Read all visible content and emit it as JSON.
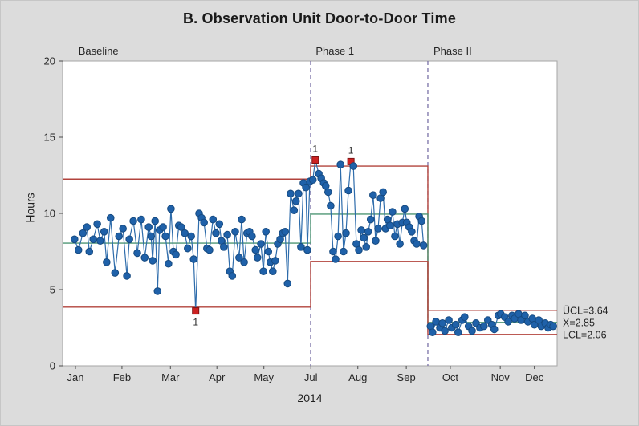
{
  "chart_data": {
    "type": "line",
    "subtype": "individuals-control-chart",
    "title": "B. Observation Unit Door-to-Door Time",
    "ylabel": "Hours",
    "xlabel": "2014",
    "ylim": [
      0,
      20
    ],
    "yticks": [
      0,
      5,
      10,
      15,
      20
    ],
    "grid": false,
    "legend_position": "none",
    "xticks": [
      {
        "label": "Jan",
        "f": 0.026
      },
      {
        "label": "Feb",
        "f": 0.12
      },
      {
        "label": "Mar",
        "f": 0.218
      },
      {
        "label": "Apr",
        "f": 0.312
      },
      {
        "label": "May",
        "f": 0.407
      },
      {
        "label": "Jul",
        "f": 0.502
      },
      {
        "label": "Aug",
        "f": 0.597
      },
      {
        "label": "Sep",
        "f": 0.695
      },
      {
        "label": "Oct",
        "f": 0.784
      },
      {
        "label": "Nov",
        "f": 0.885
      },
      {
        "label": "Dec",
        "f": 0.954
      }
    ],
    "flag_label": "1",
    "phases": [
      {
        "name": "Baseline",
        "label_f": 0.032,
        "f0": 0.0,
        "f1": 0.5016,
        "ucl": 12.25,
        "cl": 8.05,
        "lcl": 3.85,
        "points": [
          [
            0.024,
            8.3
          ],
          [
            0.032,
            7.6
          ],
          [
            0.041,
            8.7
          ],
          [
            0.049,
            9.1
          ],
          [
            0.054,
            7.5
          ],
          [
            0.062,
            8.3
          ],
          [
            0.07,
            9.3
          ],
          [
            0.076,
            8.2
          ],
          [
            0.084,
            8.8
          ],
          [
            0.089,
            6.8
          ],
          [
            0.097,
            9.7
          ],
          [
            0.106,
            6.1
          ],
          [
            0.114,
            8.5
          ],
          [
            0.122,
            9.0
          ],
          [
            0.13,
            5.9
          ],
          [
            0.135,
            8.3
          ],
          [
            0.143,
            9.5
          ],
          [
            0.151,
            7.4
          ],
          [
            0.159,
            9.6
          ],
          [
            0.166,
            7.1
          ],
          [
            0.174,
            9.1
          ],
          [
            0.179,
            8.5
          ],
          [
            0.182,
            6.9
          ],
          [
            0.187,
            9.5
          ],
          [
            0.192,
            4.9
          ],
          [
            0.196,
            8.9
          ],
          [
            0.203,
            9.1
          ],
          [
            0.208,
            8.5
          ],
          [
            0.214,
            6.7
          ],
          [
            0.219,
            10.3
          ],
          [
            0.224,
            7.5
          ],
          [
            0.229,
            7.3
          ],
          [
            0.235,
            9.2
          ],
          [
            0.24,
            9.1
          ],
          [
            0.247,
            8.7
          ],
          [
            0.253,
            7.7
          ],
          [
            0.26,
            8.5
          ],
          [
            0.265,
            7.0
          ],
          [
            0.269,
            3.6,
            1
          ],
          [
            0.276,
            10.0
          ],
          [
            0.281,
            9.7
          ],
          [
            0.286,
            9.4
          ],
          [
            0.292,
            7.7
          ],
          [
            0.297,
            7.6
          ],
          [
            0.304,
            9.6
          ],
          [
            0.31,
            8.7
          ],
          [
            0.317,
            9.3
          ],
          [
            0.321,
            8.2
          ],
          [
            0.326,
            7.8
          ],
          [
            0.333,
            8.6
          ],
          [
            0.338,
            6.2
          ],
          [
            0.343,
            5.9
          ],
          [
            0.349,
            8.8
          ],
          [
            0.357,
            7.1
          ],
          [
            0.362,
            9.6
          ],
          [
            0.367,
            6.8
          ],
          [
            0.373,
            8.7
          ],
          [
            0.378,
            8.8
          ],
          [
            0.383,
            8.5
          ],
          [
            0.39,
            7.6
          ],
          [
            0.394,
            7.1
          ],
          [
            0.401,
            8.0
          ],
          [
            0.406,
            6.2
          ],
          [
            0.411,
            8.8
          ],
          [
            0.416,
            7.5
          ],
          [
            0.42,
            6.8
          ],
          [
            0.425,
            6.2
          ],
          [
            0.43,
            6.9
          ],
          [
            0.435,
            8.0
          ],
          [
            0.44,
            8.3
          ],
          [
            0.445,
            8.7
          ],
          [
            0.45,
            8.8
          ],
          [
            0.455,
            5.4
          ],
          [
            0.461,
            11.3
          ],
          [
            0.468,
            10.2
          ],
          [
            0.472,
            10.8
          ],
          [
            0.477,
            11.3
          ],
          [
            0.482,
            7.8
          ],
          [
            0.487,
            12.0
          ],
          [
            0.492,
            11.7
          ],
          [
            0.495,
            7.6
          ],
          [
            0.5,
            12.1
          ]
        ]
      },
      {
        "name": "Phase 1",
        "label_f": 0.512,
        "f0": 0.5016,
        "f1": 0.7386,
        "ucl": 13.1,
        "cl": 9.95,
        "lcl": 6.85,
        "points": [
          [
            0.506,
            12.2
          ],
          [
            0.511,
            13.5,
            1
          ],
          [
            0.518,
            12.6
          ],
          [
            0.523,
            12.3
          ],
          [
            0.528,
            12.0
          ],
          [
            0.532,
            11.8
          ],
          [
            0.537,
            11.4
          ],
          [
            0.542,
            10.5
          ],
          [
            0.547,
            7.5
          ],
          [
            0.552,
            7.0
          ],
          [
            0.557,
            8.5
          ],
          [
            0.562,
            13.2
          ],
          [
            0.568,
            7.5
          ],
          [
            0.573,
            8.7
          ],
          [
            0.578,
            11.5
          ],
          [
            0.583,
            13.4,
            1
          ],
          [
            0.588,
            13.1
          ],
          [
            0.594,
            8.0
          ],
          [
            0.599,
            7.6
          ],
          [
            0.604,
            8.9
          ],
          [
            0.609,
            8.4
          ],
          [
            0.614,
            7.8
          ],
          [
            0.618,
            8.8
          ],
          [
            0.623,
            9.6
          ],
          [
            0.628,
            11.2
          ],
          [
            0.633,
            8.2
          ],
          [
            0.638,
            9.0
          ],
          [
            0.643,
            11.0
          ],
          [
            0.648,
            11.4
          ],
          [
            0.653,
            9.0
          ],
          [
            0.657,
            9.6
          ],
          [
            0.662,
            9.2
          ],
          [
            0.667,
            10.1
          ],
          [
            0.672,
            8.5
          ],
          [
            0.677,
            9.3
          ],
          [
            0.682,
            8.0
          ],
          [
            0.687,
            9.4
          ],
          [
            0.692,
            10.3
          ],
          [
            0.696,
            9.4
          ],
          [
            0.701,
            9.1
          ],
          [
            0.706,
            8.8
          ],
          [
            0.711,
            8.2
          ],
          [
            0.716,
            8.0
          ],
          [
            0.721,
            9.8
          ],
          [
            0.726,
            9.5
          ],
          [
            0.73,
            7.9
          ]
        ]
      },
      {
        "name": "Phase II",
        "label_f": 0.75,
        "f0": 0.7386,
        "f1": 1.0,
        "ucl": 3.64,
        "cl": 2.85,
        "lcl": 2.06,
        "points": [
          [
            0.744,
            2.6
          ],
          [
            0.748,
            2.2
          ],
          [
            0.755,
            2.9
          ],
          [
            0.763,
            2.5
          ],
          [
            0.768,
            2.8
          ],
          [
            0.773,
            2.3
          ],
          [
            0.781,
            3.0
          ],
          [
            0.787,
            2.5
          ],
          [
            0.795,
            2.7
          ],
          [
            0.8,
            2.2
          ],
          [
            0.808,
            3.0
          ],
          [
            0.813,
            3.2
          ],
          [
            0.821,
            2.6
          ],
          [
            0.828,
            2.3
          ],
          [
            0.836,
            2.8
          ],
          [
            0.844,
            2.5
          ],
          [
            0.852,
            2.6
          ],
          [
            0.86,
            3.0
          ],
          [
            0.868,
            2.7
          ],
          [
            0.873,
            2.4
          ],
          [
            0.881,
            3.3
          ],
          [
            0.886,
            3.4
          ],
          [
            0.894,
            3.2
          ],
          [
            0.901,
            2.9
          ],
          [
            0.909,
            3.3
          ],
          [
            0.914,
            3.1
          ],
          [
            0.922,
            3.4
          ],
          [
            0.927,
            3.0
          ],
          [
            0.935,
            3.3
          ],
          [
            0.941,
            2.9
          ],
          [
            0.95,
            3.1
          ],
          [
            0.954,
            2.7
          ],
          [
            0.963,
            3.0
          ],
          [
            0.968,
            2.6
          ],
          [
            0.976,
            2.8
          ],
          [
            0.982,
            2.5
          ],
          [
            0.987,
            2.7
          ],
          [
            0.992,
            2.6
          ]
        ]
      }
    ],
    "right_labels": [
      {
        "text": "ŪCL=3.64",
        "v": 3.64
      },
      {
        "text": "X=2.85",
        "v": 2.85
      },
      {
        "text": "LCL=2.06",
        "v": 2.06
      }
    ],
    "colors": {
      "point_fill": "#1f61a9",
      "point_stroke": "#164a80",
      "series_line": "#2e6cab",
      "limit_line": "#b2433c",
      "center_line": "#4e9674",
      "divider_line": "#6f66a0",
      "flag_fill": "#cc2222",
      "flag_stroke": "#7e1414",
      "axis_line": "#a6a6a6",
      "tick_mark": "#4d4d4d",
      "text": "#262626",
      "plot_bg": "#ffffff",
      "page_bg": "#dcdcdc"
    }
  }
}
